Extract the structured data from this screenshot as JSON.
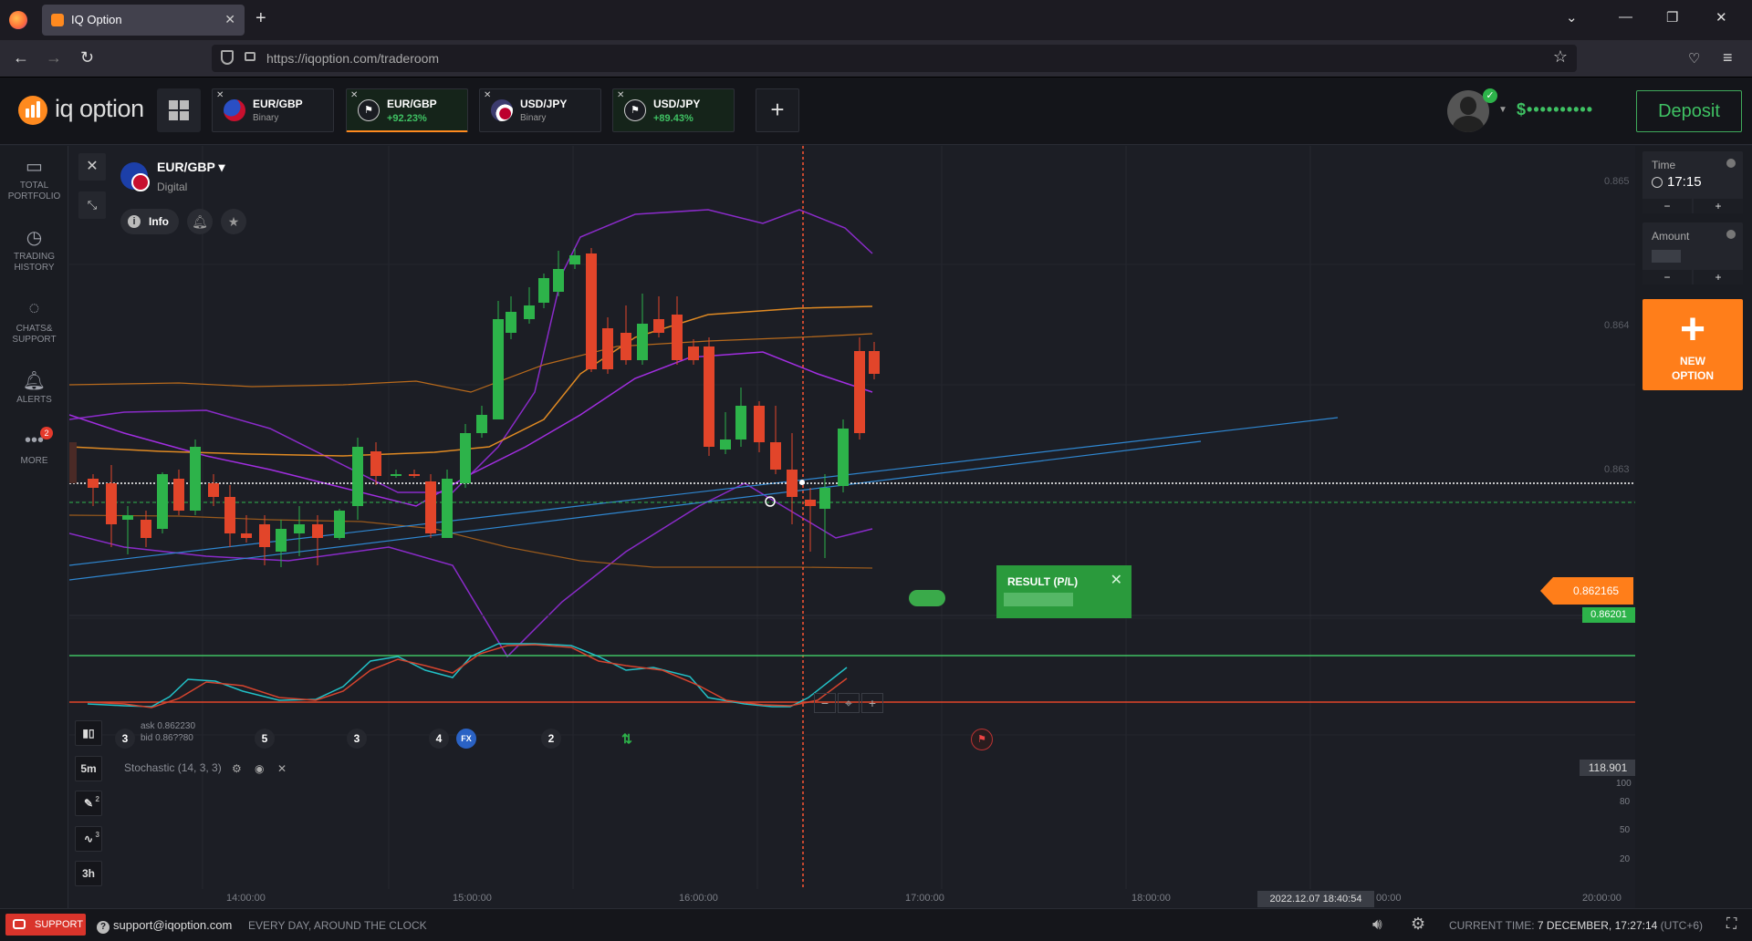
{
  "browser": {
    "tab_title": "IQ Option",
    "url": "https://iqoption.com/traderoom",
    "new_tab": "+",
    "tab_close": "✕"
  },
  "header": {
    "logo_text": "iq option",
    "tabs": [
      {
        "name": "EUR/GBP",
        "sub": "Binary",
        "profit": false
      },
      {
        "name": "EUR/GBP",
        "sub": "+92.23%",
        "profit": true
      },
      {
        "name": "USD/JPY",
        "sub": "Binary",
        "profit": false
      },
      {
        "name": "USD/JPY",
        "sub": "+89.43%",
        "profit": true
      }
    ],
    "balance": "$••••••••••",
    "deposit": "Deposit"
  },
  "sidebar": {
    "items": [
      {
        "label": "TOTAL PORTFOLIO",
        "icon": "briefcase-icon"
      },
      {
        "label": "TRADING HISTORY",
        "icon": "history-icon"
      },
      {
        "label": "CHATS& SUPPORT",
        "icon": "chat-icon"
      },
      {
        "label": "ALERTS",
        "icon": "bell-icon"
      },
      {
        "label": "MORE",
        "icon": "more-icon",
        "badge": "2"
      }
    ]
  },
  "chart": {
    "asset": "EUR/GBP",
    "asset_type": "Digital",
    "info": "Info",
    "price_axis": [
      "0.865",
      "0.864",
      "0.863"
    ],
    "time_axis": [
      "14:00:00",
      "15:00:00",
      "16:00:00",
      "17:00:00",
      "18:00:00",
      "00:00",
      "20:00:00"
    ],
    "current_price": "0.862165",
    "strike_price": "0.86201",
    "result_title": "RESULT (P/L)",
    "ask": "ask 0.862230",
    "bid": "bid 0.86??80",
    "signals": [
      "3",
      "5",
      "3",
      "4",
      "2"
    ],
    "timeframe": "5m",
    "draw_count": "2",
    "indicator_count": "3",
    "period": "3h",
    "stochastic_title": "Stochastic (14, 3, 3)",
    "stochastic_value": "118.901",
    "stochastic_axis": [
      "100",
      "80",
      "50",
      "20"
    ],
    "date_label": "2022.12.07 18:40:54",
    "colors": {
      "up": "#2db34a",
      "down": "#e2452a",
      "accent": "#ff7e1a"
    }
  },
  "chart_data": {
    "type": "candlestick",
    "ylim": [
      0.8614,
      0.8652
    ],
    "candles_close_trend": [
      0.8622,
      0.862,
      0.8623,
      0.8621,
      0.8627,
      0.8629,
      0.8636,
      0.864,
      0.8644,
      0.8638,
      0.8632,
      0.8627,
      0.8631,
      0.8624,
      0.8619,
      0.8621,
      0.8629,
      0.8632
    ],
    "stochastic_levels": [
      80,
      20
    ]
  },
  "right_panel": {
    "time_label": "Time",
    "time_value": "17:15",
    "amount_label": "Amount",
    "minus": "−",
    "plus": "+",
    "new_option": "NEW OPTION"
  },
  "footer": {
    "support": "SUPPORT",
    "email": "support@iqoption.com",
    "hours": "EVERY DAY, AROUND THE CLOCK",
    "current_time_label": "CURRENT TIME:",
    "current_time_value": "7 DECEMBER, 17:27:14",
    "timezone": "(UTC+6)"
  }
}
